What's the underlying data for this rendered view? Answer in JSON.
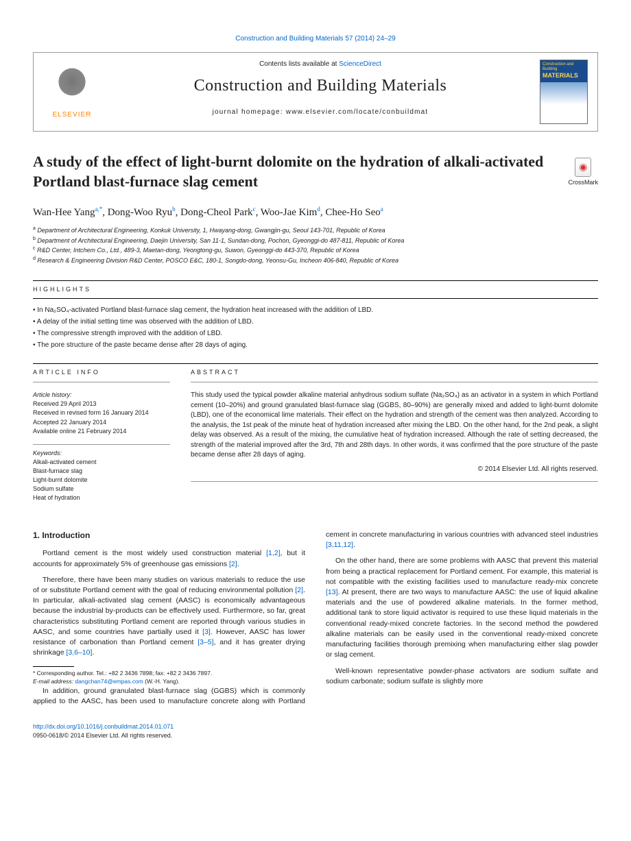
{
  "journalRef": "Construction and Building Materials 57 (2014) 24–29",
  "header": {
    "contentsPrefix": "Contents lists available at ",
    "contentsLink": "ScienceDirect",
    "journalName": "Construction and Building Materials",
    "homepage": "journal homepage: www.elsevier.com/locate/conbuildmat",
    "elsevierBrand": "ELSEVIER",
    "cover": {
      "line1": "Construction\nand Building",
      "line2": "MATERIALS"
    }
  },
  "crossmark": "CrossMark",
  "title": "A study of the effect of light-burnt dolomite on the hydration of alkali-activated Portland blast-furnace slag cement",
  "authors": [
    {
      "name": "Wan-Hee Yang",
      "sup": "a,*"
    },
    {
      "name": "Dong-Woo Ryu",
      "sup": "b"
    },
    {
      "name": "Dong-Cheol Park",
      "sup": "c"
    },
    {
      "name": "Woo-Jae Kim",
      "sup": "d"
    },
    {
      "name": "Chee-Ho Seo",
      "sup": "a"
    }
  ],
  "affiliations": [
    {
      "sup": "a",
      "text": "Department of Architectural Engineering, Konkuk University, 1, Hwayang-dong, Gwangjin-gu, Seoul 143-701, Republic of Korea"
    },
    {
      "sup": "b",
      "text": "Department of Architectural Engineering, Daejin University, San 11-1, Sundan-dong, Pochon, Gyeonggi-do 487-811, Republic of Korea"
    },
    {
      "sup": "c",
      "text": "R&D Center, Intchem Co., Ltd., 489-3, Maetan-dong, Yeongtong-gu, Suwon, Gyeonggi-do 443-370, Republic of Korea"
    },
    {
      "sup": "d",
      "text": "Research & Engineering Division R&D Center, POSCO E&C, 180-1, Songdo-dong, Yeonsu-Gu, Incheon 406-840, Republic of Korea"
    }
  ],
  "highlightsLabel": "HIGHLIGHTS",
  "highlights": [
    "In Na₂SO₄-activated Portland blast-furnace slag cement, the hydration heat increased with the addition of LBD.",
    "A delay of the initial setting time was observed with the addition of LBD.",
    "The compressive strength improved with the addition of LBD.",
    "The pore structure of the paste became dense after 28 days of aging."
  ],
  "articleInfoLabel": "ARTICLE INFO",
  "abstractLabel": "ABSTRACT",
  "history": {
    "label": "Article history:",
    "received": "Received 29 April 2013",
    "revised": "Received in revised form 16 January 2014",
    "accepted": "Accepted 22 January 2014",
    "online": "Available online 21 February 2014"
  },
  "keywordsLabel": "Keywords:",
  "keywords": [
    "Alkali-activated cement",
    "Blast-furnace slag",
    "Light-burnt dolomite",
    "Sodium sulfate",
    "Heat of hydration"
  ],
  "abstract": "This study used the typical powder alkaline material anhydrous sodium sulfate (Na₂SO₄) as an activator in a system in which Portland cement (10–20%) and ground granulated blast-furnace slag (GGBS, 80–90%) are generally mixed and added to light-burnt dolomite (LBD), one of the economical lime materials. Their effect on the hydration and strength of the cement was then analyzed. According to the analysis, the 1st peak of the minute heat of hydration increased after mixing the LBD. On the other hand, for the 2nd peak, a slight delay was observed. As a result of the mixing, the cumulative heat of hydration increased. Although the rate of setting decreased, the strength of the material improved after the 3rd, 7th and 28th days. In other words, it was confirmed that the pore structure of the paste became dense after 28 days of aging.",
  "copyright": "© 2014 Elsevier Ltd. All rights reserved.",
  "intro": {
    "heading": "1. Introduction",
    "p1a": "Portland cement is the most widely used construction material ",
    "p1b": ", but it accounts for approximately 5% of greenhouse gas emissions ",
    "p1c": ".",
    "ref12": "[1,2]",
    "ref2": "[2]",
    "p2a": "Therefore, there have been many studies on various materials to reduce the use of or substitute Portland cement with the goal of reducing environmental pollution ",
    "p2b": ". In particular, alkali-activated slag cement (AASC) is economically advantageous because the industrial by-products can be effectively used. Furthermore, so far, great characteristics substituting Portland cement are reported through various studies in AASC, and some countries have partially used it ",
    "p2c": ". However, AASC has lower resistance of carbonation than Portland cement ",
    "p2d": ", and it has greater drying shrinkage ",
    "p2e": ".",
    "ref3": "[3]",
    "ref35": "[3–5]",
    "ref3610": "[3,6–10]",
    "p3a": "In addition, ground granulated blast-furnace slag (GGBS) which is commonly applied to the AASC, has been used to manufacture concrete along with Portland cement in concrete manufacturing in various countries with advanced steel industries ",
    "ref31112": "[3,11,12]",
    "p3b": ".",
    "p4a": "On the other hand, there are some problems with AASC that prevent this material from being a practical replacement for Portland cement. For example, this material is not compatible with the existing facilities used to manufacture ready-mix concrete ",
    "ref13": "[13]",
    "p4b": ". At present, there are two ways to manufacture AASC: the use of liquid alkaline materials and the use of powdered alkaline materials. In the former method, additional tank to store liquid activator is required to use these liquid materials in the conventional ready-mixed concrete factories. In the second method the powdered alkaline materials can be easily used in the conventional ready-mixed concrete manufacturing facilities thorough premixing when manufacturing either slag powder or slag cement.",
    "p5": "Well-known representative powder-phase activators are sodium sulfate and sodium carbonate; sodium sulfate is slightly more"
  },
  "footnote": {
    "corr": "* Corresponding author. Tel.: +82 2 3436 7898; fax: +82 2 3436 7897.",
    "emailLabel": "E-mail address: ",
    "email": "dangchan74@empas.com",
    "emailSuffix": " (W.-H. Yang)."
  },
  "footer": {
    "doi": "http://dx.doi.org/10.1016/j.conbuildmat.2014.01.071",
    "issn": "0950-0618/© 2014 Elsevier Ltd. All rights reserved."
  }
}
